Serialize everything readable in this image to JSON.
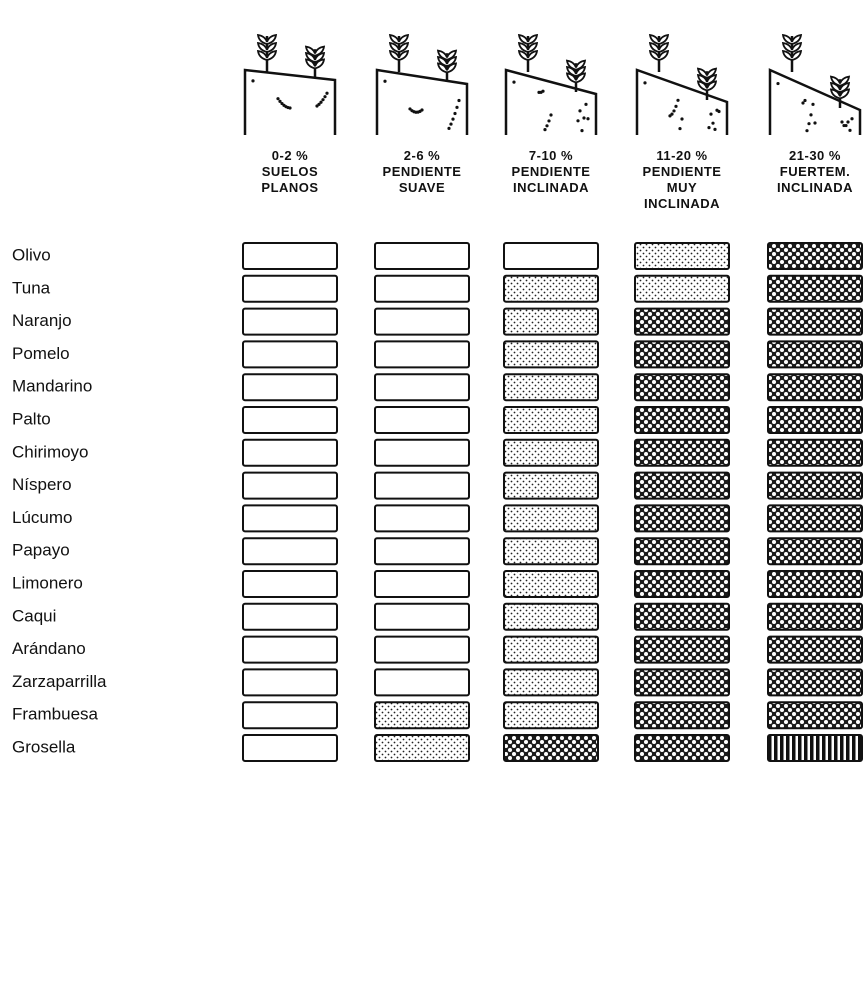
{
  "columns": [
    {
      "lines": [
        "0-2 %",
        "SUELOS",
        "PLANOS"
      ]
    },
    {
      "lines": [
        "2-6 %",
        "PENDIENTE",
        "SUAVE"
      ]
    },
    {
      "lines": [
        "7-10 %",
        "PENDIENTE",
        "INCLINADA"
      ]
    },
    {
      "lines": [
        "11-20 %",
        "PENDIENTE",
        "MUY",
        "INCLINADA"
      ]
    },
    {
      "lines": [
        "21-30 %",
        "FUERTEM.",
        "INCLINADA"
      ]
    }
  ],
  "rows": [
    {
      "label": "Olivo",
      "cells": [
        "blank",
        "blank",
        "blank",
        "light",
        "dense"
      ]
    },
    {
      "label": "Tuna",
      "cells": [
        "blank",
        "blank",
        "light",
        "light",
        "dense"
      ]
    },
    {
      "label": "Naranjo",
      "cells": [
        "blank",
        "blank",
        "light",
        "dense",
        "dense"
      ]
    },
    {
      "label": "Pomelo",
      "cells": [
        "blank",
        "blank",
        "light",
        "dense",
        "dense"
      ]
    },
    {
      "label": "Mandarino",
      "cells": [
        "blank",
        "blank",
        "light",
        "dense",
        "dense"
      ]
    },
    {
      "label": "Palto",
      "cells": [
        "blank",
        "blank",
        "light",
        "dense",
        "dense"
      ]
    },
    {
      "label": "Chirimoyo",
      "cells": [
        "blank",
        "blank",
        "light",
        "dense",
        "dense"
      ]
    },
    {
      "label": "Níspero",
      "cells": [
        "blank",
        "blank",
        "light",
        "dense",
        "dense"
      ]
    },
    {
      "label": "Lúcumo",
      "cells": [
        "blank",
        "blank",
        "light",
        "dense",
        "dense"
      ]
    },
    {
      "label": "Papayo",
      "cells": [
        "blank",
        "blank",
        "light",
        "dense",
        "dense"
      ]
    },
    {
      "label": "Limonero",
      "cells": [
        "blank",
        "blank",
        "light",
        "dense",
        "dense"
      ]
    },
    {
      "label": "Caqui",
      "cells": [
        "blank",
        "blank",
        "light",
        "dense",
        "dense"
      ]
    },
    {
      "label": "Arándano",
      "cells": [
        "blank",
        "blank",
        "light",
        "dense",
        "dense"
      ]
    },
    {
      "label": "Zarzaparrilla",
      "cells": [
        "blank",
        "blank",
        "light",
        "dense",
        "dense"
      ]
    },
    {
      "label": "Frambuesa",
      "cells": [
        "blank",
        "light",
        "light",
        "dense",
        "dense"
      ]
    },
    {
      "label": "Grosella",
      "cells": [
        "blank",
        "light",
        "dense",
        "dense",
        "stripes"
      ]
    }
  ]
}
